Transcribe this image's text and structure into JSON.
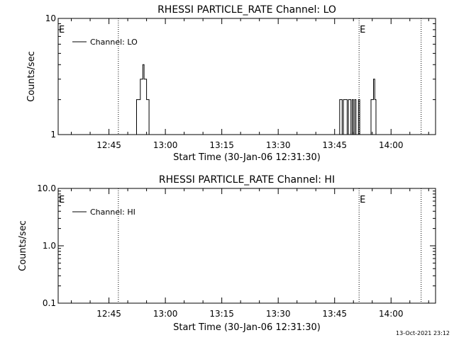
{
  "footer": {
    "timestamp": "13-Oct-2021 23:12"
  },
  "chart_data": [
    {
      "type": "line",
      "title": "RHESSI PARTICLE_RATE Channel: LO",
      "xlabel": "Start Time (30-Jan-06 12:31:30)",
      "ylabel": "Counts/sec",
      "yscale": "log",
      "ylim": [
        1,
        10
      ],
      "xlim": [
        "12:31:30",
        "14:11:50"
      ],
      "x_ticks": [
        "12:45",
        "13:00",
        "13:15",
        "13:30",
        "13:45",
        "14:00"
      ],
      "y_ticks": [
        "1",
        "10"
      ],
      "legend": {
        "entry": "Channel: LO",
        "placement": "top-left"
      },
      "eclipse_marker": "E",
      "vertical_markers": [
        "12:47:30",
        "13:51:30",
        "14:08:00"
      ],
      "series": [
        {
          "name": "Channel: LO",
          "x": [
            "12:52:00",
            "12:52:20",
            "12:52:40",
            "12:53:00",
            "12:53:20",
            "12:53:40",
            "12:54:00",
            "12:54:20",
            "12:54:40",
            "12:55:00",
            "12:55:20",
            "12:55:40",
            "12:56:00",
            "12:56:20",
            "12:56:40",
            "12:57:00",
            "12:57:20",
            "12:57:40",
            "13:46:00",
            "13:46:20",
            "13:46:40",
            "13:47:00",
            "13:47:20",
            "13:47:40",
            "13:48:00",
            "13:48:20",
            "13:48:40",
            "13:49:00",
            "13:49:20",
            "13:49:40",
            "13:50:00",
            "13:50:20",
            "13:50:40",
            "13:51:00",
            "13:51:20",
            "13:51:40",
            "13:54:00",
            "13:54:20",
            "13:54:40",
            "13:55:00",
            "13:55:20",
            "13:55:40",
            "13:56:00",
            "13:56:20",
            "13:56:40"
          ],
          "y": [
            1,
            2,
            2,
            2,
            3,
            3,
            4,
            3,
            3,
            2,
            2,
            1,
            null,
            null,
            null,
            null,
            null,
            null,
            1,
            2,
            2,
            1,
            2,
            2,
            2,
            1,
            2,
            2,
            1,
            2,
            1,
            2,
            1,
            1,
            2,
            1,
            1,
            1,
            2,
            2,
            3,
            2,
            1,
            1,
            1
          ]
        }
      ]
    },
    {
      "type": "line",
      "title": "RHESSI PARTICLE_RATE Channel: HI",
      "xlabel": "Start Time (30-Jan-06 12:31:30)",
      "ylabel": "Counts/sec",
      "yscale": "log",
      "ylim": [
        0.1,
        10
      ],
      "xlim": [
        "12:31:30",
        "14:11:50"
      ],
      "x_ticks": [
        "12:45",
        "13:00",
        "13:15",
        "13:30",
        "13:45",
        "14:00"
      ],
      "y_ticks": [
        "0.1",
        "1.0",
        "10.0"
      ],
      "legend": {
        "entry": "Channel: HI",
        "placement": "top-left"
      },
      "eclipse_marker": "E",
      "vertical_markers": [
        "12:47:30",
        "13:51:30",
        "14:08:00"
      ],
      "series": [
        {
          "name": "Channel: HI",
          "x": [],
          "y": []
        }
      ]
    }
  ]
}
